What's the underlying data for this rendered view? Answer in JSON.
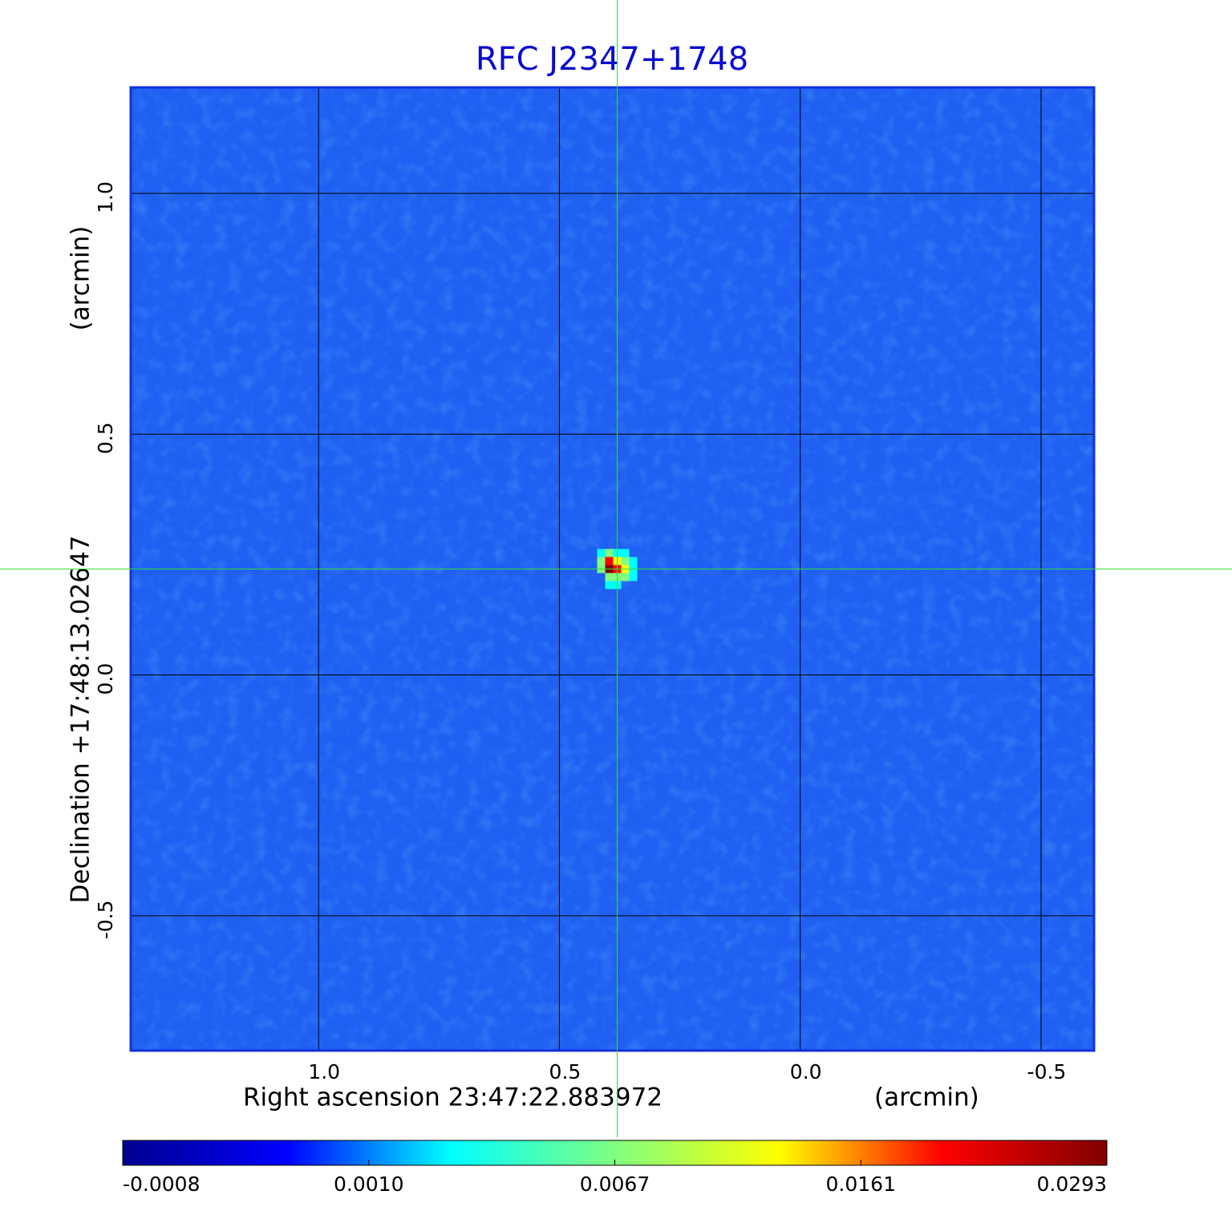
{
  "chart_data": {
    "type": "image",
    "title": "RFC J2347+1748",
    "xlabel": "Right ascension  23:47:22.883972",
    "xunit": "(arcmin)",
    "ylabel": "Declination  +17:48:13.02647",
    "yunit": "(arcmin)",
    "xlim": [
      1.39,
      -0.61
    ],
    "ylim": [
      -0.78,
      1.22
    ],
    "xticks": [
      {
        "value": 1,
        "label": "1.0"
      },
      {
        "value": 0.5,
        "label": "0.5"
      },
      {
        "value": 0,
        "label": "0.0"
      },
      {
        "value": -0.5,
        "label": "-0.5"
      }
    ],
    "yticks": [
      {
        "value": 1,
        "label": "1.0"
      },
      {
        "value": 0.5,
        "label": "0.5"
      },
      {
        "value": 0,
        "label": "0.0"
      },
      {
        "value": -0.5,
        "label": "-0.5"
      }
    ],
    "grid": true,
    "background_color": "#1f5ff2",
    "source": {
      "x": 0.38,
      "y": 0.22,
      "peak": 0.0293
    },
    "crosshair_color": "#33dd33",
    "colorbar_ticks": [
      -0.0008,
      {
        "value": 0.001,
        "label": "0.0010"
      },
      0.0067,
      0.0161,
      0.0293
    ],
    "colormap": [
      "#00008f",
      "#0000ff",
      "#00ffff",
      "#80ff80",
      "#ffff00",
      "#ff0000",
      "#800000"
    ]
  }
}
